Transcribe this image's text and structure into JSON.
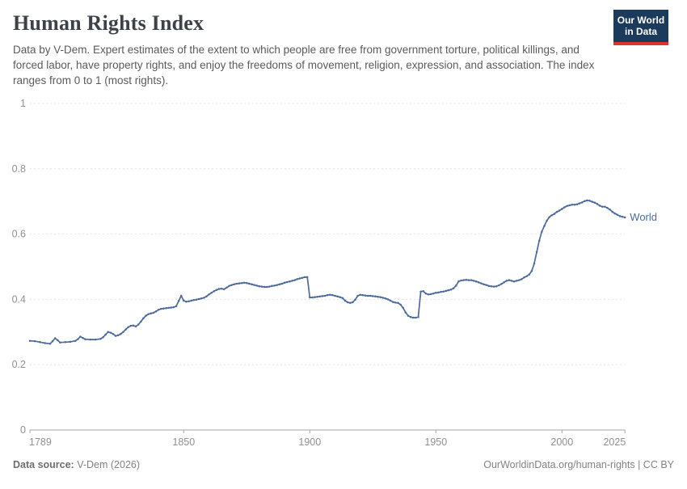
{
  "header": {
    "title": "Human Rights Index",
    "subtitle": "Data by V-Dem. Expert estimates of the extent to which people are free from government torture, political killings, and forced labor, have property rights, and enjoy the freedoms of movement, religion, expression, and association. The index ranges from 0 to 1 (most rights).",
    "logo": {
      "line1": "Our World",
      "line2": "in Data",
      "bg_color": "#1b3a5c",
      "stripe_color": "#dc352b"
    }
  },
  "chart_data": {
    "type": "line",
    "title": "Human Rights Index",
    "xlabel": "",
    "ylabel": "",
    "xlim": [
      1789,
      2025
    ],
    "ylim": [
      0,
      1
    ],
    "x_ticks": [
      1789,
      1850,
      1900,
      1950,
      2000,
      2025
    ],
    "y_ticks": [
      0,
      0.2,
      0.4,
      0.6,
      0.8,
      1
    ],
    "grid": "horizontal-dashed",
    "legend_position": "end-of-line",
    "colors": {
      "line": "#4c6a9c",
      "grid": "#e3e3e3",
      "axis": "#a5a5a5",
      "tick_text": "#8f8f8f"
    },
    "x": [
      1789,
      1791,
      1793,
      1795,
      1797,
      1798,
      1799,
      1800,
      1801,
      1803,
      1805,
      1807,
      1808,
      1809,
      1810,
      1811,
      1813,
      1815,
      1817,
      1818,
      1819,
      1820,
      1821,
      1822,
      1823,
      1824,
      1825,
      1826,
      1827,
      1828,
      1829,
      1830,
      1831,
      1832,
      1833,
      1834,
      1835,
      1836,
      1837,
      1838,
      1839,
      1840,
      1841,
      1842,
      1843,
      1844,
      1845,
      1846,
      1847,
      1848,
      1849,
      1850,
      1851,
      1852,
      1853,
      1854,
      1855,
      1856,
      1857,
      1858,
      1859,
      1860,
      1861,
      1862,
      1863,
      1864,
      1865,
      1866,
      1867,
      1868,
      1869,
      1870,
      1871,
      1872,
      1873,
      1874,
      1875,
      1876,
      1877,
      1878,
      1879,
      1880,
      1881,
      1882,
      1883,
      1884,
      1885,
      1886,
      1887,
      1888,
      1889,
      1890,
      1891,
      1892,
      1893,
      1894,
      1895,
      1896,
      1897,
      1898,
      1899,
      1900,
      1901,
      1902,
      1903,
      1904,
      1905,
      1906,
      1907,
      1908,
      1909,
      1910,
      1911,
      1912,
      1913,
      1914,
      1915,
      1916,
      1917,
      1918,
      1919,
      1920,
      1921,
      1922,
      1923,
      1924,
      1925,
      1926,
      1927,
      1928,
      1929,
      1930,
      1931,
      1932,
      1933,
      1934,
      1935,
      1936,
      1937,
      1938,
      1939,
      1940,
      1941,
      1942,
      1943,
      1944,
      1945,
      1946,
      1947,
      1948,
      1949,
      1950,
      1951,
      1952,
      1953,
      1954,
      1955,
      1956,
      1957,
      1958,
      1959,
      1960,
      1961,
      1962,
      1963,
      1964,
      1965,
      1966,
      1967,
      1968,
      1969,
      1970,
      1971,
      1972,
      1973,
      1974,
      1975,
      1976,
      1977,
      1978,
      1979,
      1980,
      1981,
      1982,
      1983,
      1984,
      1985,
      1986,
      1987,
      1988,
      1989,
      1990,
      1991,
      1992,
      1993,
      1994,
      1995,
      1996,
      1997,
      1998,
      1999,
      2000,
      2001,
      2002,
      2003,
      2004,
      2005,
      2006,
      2007,
      2008,
      2009,
      2010,
      2011,
      2012,
      2013,
      2014,
      2015,
      2016,
      2017,
      2018,
      2019,
      2020,
      2021,
      2022,
      2023,
      2024,
      2025
    ],
    "series": [
      {
        "name": "World",
        "color": "#4c6a9c",
        "values": [
          0.273,
          0.272,
          0.269,
          0.266,
          0.264,
          0.272,
          0.281,
          0.275,
          0.268,
          0.269,
          0.27,
          0.273,
          0.278,
          0.286,
          0.282,
          0.278,
          0.277,
          0.277,
          0.279,
          0.284,
          0.292,
          0.3,
          0.298,
          0.294,
          0.288,
          0.29,
          0.294,
          0.3,
          0.308,
          0.315,
          0.319,
          0.32,
          0.317,
          0.323,
          0.332,
          0.342,
          0.35,
          0.355,
          0.357,
          0.359,
          0.363,
          0.368,
          0.371,
          0.372,
          0.373,
          0.374,
          0.375,
          0.376,
          0.379,
          0.395,
          0.411,
          0.396,
          0.393,
          0.394,
          0.396,
          0.398,
          0.399,
          0.401,
          0.403,
          0.405,
          0.409,
          0.415,
          0.42,
          0.425,
          0.429,
          0.432,
          0.433,
          0.431,
          0.436,
          0.441,
          0.444,
          0.446,
          0.448,
          0.449,
          0.45,
          0.451,
          0.45,
          0.448,
          0.446,
          0.444,
          0.442,
          0.44,
          0.439,
          0.438,
          0.438,
          0.439,
          0.441,
          0.442,
          0.444,
          0.446,
          0.448,
          0.451,
          0.453,
          0.455,
          0.457,
          0.459,
          0.462,
          0.464,
          0.466,
          0.468,
          0.468,
          0.406,
          0.406,
          0.407,
          0.408,
          0.409,
          0.41,
          0.411,
          0.413,
          0.414,
          0.413,
          0.411,
          0.409,
          0.407,
          0.404,
          0.396,
          0.391,
          0.389,
          0.391,
          0.399,
          0.411,
          0.414,
          0.413,
          0.412,
          0.411,
          0.411,
          0.41,
          0.409,
          0.408,
          0.407,
          0.405,
          0.403,
          0.4,
          0.396,
          0.392,
          0.39,
          0.389,
          0.384,
          0.374,
          0.36,
          0.35,
          0.346,
          0.344,
          0.344,
          0.346,
          0.424,
          0.425,
          0.418,
          0.415,
          0.416,
          0.418,
          0.42,
          0.421,
          0.423,
          0.424,
          0.426,
          0.428,
          0.43,
          0.434,
          0.442,
          0.455,
          0.458,
          0.459,
          0.46,
          0.459,
          0.459,
          0.457,
          0.455,
          0.452,
          0.449,
          0.446,
          0.444,
          0.441,
          0.44,
          0.439,
          0.44,
          0.443,
          0.447,
          0.452,
          0.457,
          0.459,
          0.457,
          0.455,
          0.457,
          0.459,
          0.462,
          0.467,
          0.471,
          0.476,
          0.487,
          0.51,
          0.545,
          0.58,
          0.607,
          0.625,
          0.641,
          0.652,
          0.658,
          0.662,
          0.668,
          0.672,
          0.677,
          0.682,
          0.686,
          0.688,
          0.69,
          0.69,
          0.691,
          0.694,
          0.697,
          0.701,
          0.703,
          0.702,
          0.699,
          0.696,
          0.692,
          0.687,
          0.684,
          0.684,
          0.68,
          0.675,
          0.668,
          0.663,
          0.659,
          0.655,
          0.653,
          0.651
        ]
      }
    ]
  },
  "footer": {
    "source_label": "Data source:",
    "source_value": " V-Dem (2026)",
    "credit": "OurWorldinData.org/human-rights | CC BY"
  }
}
